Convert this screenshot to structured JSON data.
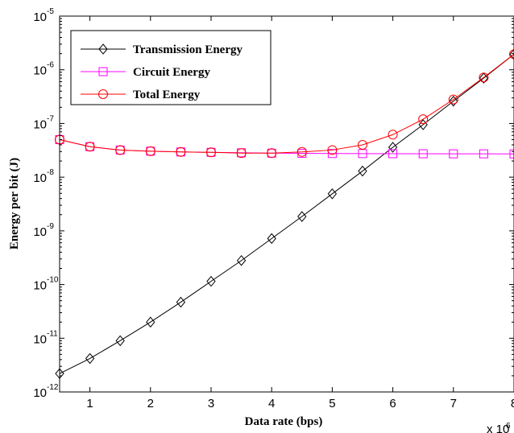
{
  "chart_data": {
    "type": "line",
    "title": "",
    "xlabel": "Data rate (bps)",
    "ylabel": "Energy per bit (J)",
    "y_scale": "log",
    "x_multiplier_label": "x 10",
    "x_multiplier_exp": "6",
    "xlim": [
      500000,
      8000000
    ],
    "ylim": [
      1e-12,
      1e-05
    ],
    "x_ticks": [
      {
        "value": 1000000,
        "label": "1"
      },
      {
        "value": 2000000,
        "label": "2"
      },
      {
        "value": 3000000,
        "label": "3"
      },
      {
        "value": 4000000,
        "label": "4"
      },
      {
        "value": 5000000,
        "label": "5"
      },
      {
        "value": 6000000,
        "label": "6"
      },
      {
        "value": 7000000,
        "label": "7"
      },
      {
        "value": 8000000,
        "label": "8"
      }
    ],
    "y_ticks": [
      {
        "value": 1e-12,
        "base": "10",
        "exp": "-12"
      },
      {
        "value": 1e-11,
        "base": "10",
        "exp": "-11"
      },
      {
        "value": 1e-10,
        "base": "10",
        "exp": "-10"
      },
      {
        "value": 1e-09,
        "base": "10",
        "exp": "-9"
      },
      {
        "value": 1e-08,
        "base": "10",
        "exp": "-8"
      },
      {
        "value": 1e-07,
        "base": "10",
        "exp": "-7"
      },
      {
        "value": 1e-06,
        "base": "10",
        "exp": "-6"
      },
      {
        "value": 1e-05,
        "base": "10",
        "exp": "-5"
      }
    ],
    "grid": false,
    "legend_position": "top-left",
    "x": [
      500000,
      1000000,
      1500000,
      2000000,
      2500000,
      3000000,
      3500000,
      4000000,
      4500000,
      5000000,
      5500000,
      6000000,
      6500000,
      7000000,
      7500000,
      8000000
    ],
    "series": [
      {
        "name": "Transmission Energy",
        "color": "#000000",
        "marker": "diamond",
        "values": [
          2.2e-12,
          4.2e-12,
          9e-12,
          2e-11,
          4.7e-11,
          1.15e-10,
          2.8e-10,
          7.2e-10,
          1.85e-09,
          4.9e-09,
          1.3e-08,
          3.6e-08,
          9.5e-08,
          2.6e-07,
          7e-07,
          1.95e-06
        ]
      },
      {
        "name": "Circuit Energy",
        "color": "#ff00ff",
        "marker": "square",
        "values": [
          5e-08,
          3.7e-08,
          3.2e-08,
          3.05e-08,
          2.95e-08,
          2.9e-08,
          2.85e-08,
          2.8e-08,
          2.78e-08,
          2.76e-08,
          2.75e-08,
          2.74e-08,
          2.73e-08,
          2.72e-08,
          2.72e-08,
          2.71e-08
        ]
      },
      {
        "name": "Total Energy",
        "color": "#ff0000",
        "marker": "circle",
        "values": [
          5e-08,
          3.7e-08,
          3.2e-08,
          3.05e-08,
          2.95e-08,
          2.9e-08,
          2.8e-08,
          2.8e-08,
          2.95e-08,
          3.2e-08,
          4e-08,
          6.2e-08,
          1.2e-07,
          2.8e-07,
          7.2e-07,
          1.95e-06
        ]
      }
    ]
  }
}
